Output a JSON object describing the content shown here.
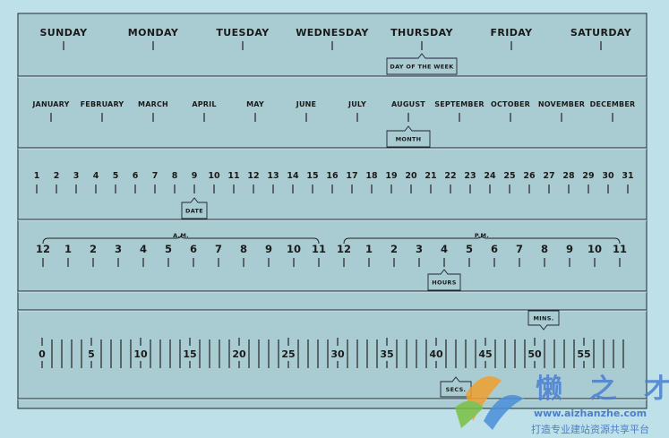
{
  "days": [
    "Sunday",
    "Monday",
    "Tuesday",
    "Wednesday",
    "Thursday",
    "Friday",
    "Saturday"
  ],
  "months": [
    "January",
    "February",
    "March",
    "April",
    "May",
    "June",
    "July",
    "August",
    "September",
    "October",
    "November",
    "December"
  ],
  "dates": [
    "1",
    "2",
    "3",
    "4",
    "5",
    "6",
    "7",
    "8",
    "9",
    "10",
    "11",
    "12",
    "13",
    "14",
    "15",
    "16",
    "17",
    "18",
    "19",
    "20",
    "21",
    "22",
    "23",
    "24",
    "25",
    "26",
    "27",
    "28",
    "29",
    "30",
    "31"
  ],
  "hours": [
    "12",
    "1",
    "2",
    "3",
    "4",
    "5",
    "6",
    "7",
    "8",
    "9",
    "10",
    "11"
  ],
  "am_label": "A.M.",
  "pm_label": "P.M.",
  "second_labels": [
    "0",
    "5",
    "10",
    "15",
    "20",
    "25",
    "30",
    "35",
    "40",
    "45",
    "50",
    "55"
  ],
  "indicators": {
    "day": {
      "label": "DAY OF THE WEEK",
      "value": "Thursday"
    },
    "month": {
      "label": "MONTH",
      "value": "August"
    },
    "date": {
      "label": "DATE",
      "value": "9"
    },
    "hour": {
      "label": "HOURS",
      "value": "P.M. 4"
    },
    "minute": {
      "label": "MINS.",
      "value": 50
    },
    "second": {
      "label": "SECS.",
      "value": 40
    }
  },
  "watermark": {
    "title": "懒 之 才",
    "url": "www.aizhanzhe.com",
    "tagline": "打造专业建站资源共享平台"
  },
  "colors": {
    "background": "#bde0e9",
    "panel": "#a9ccd3",
    "ink": "#1a1a1a",
    "watermark": "#4a7fd0"
  }
}
